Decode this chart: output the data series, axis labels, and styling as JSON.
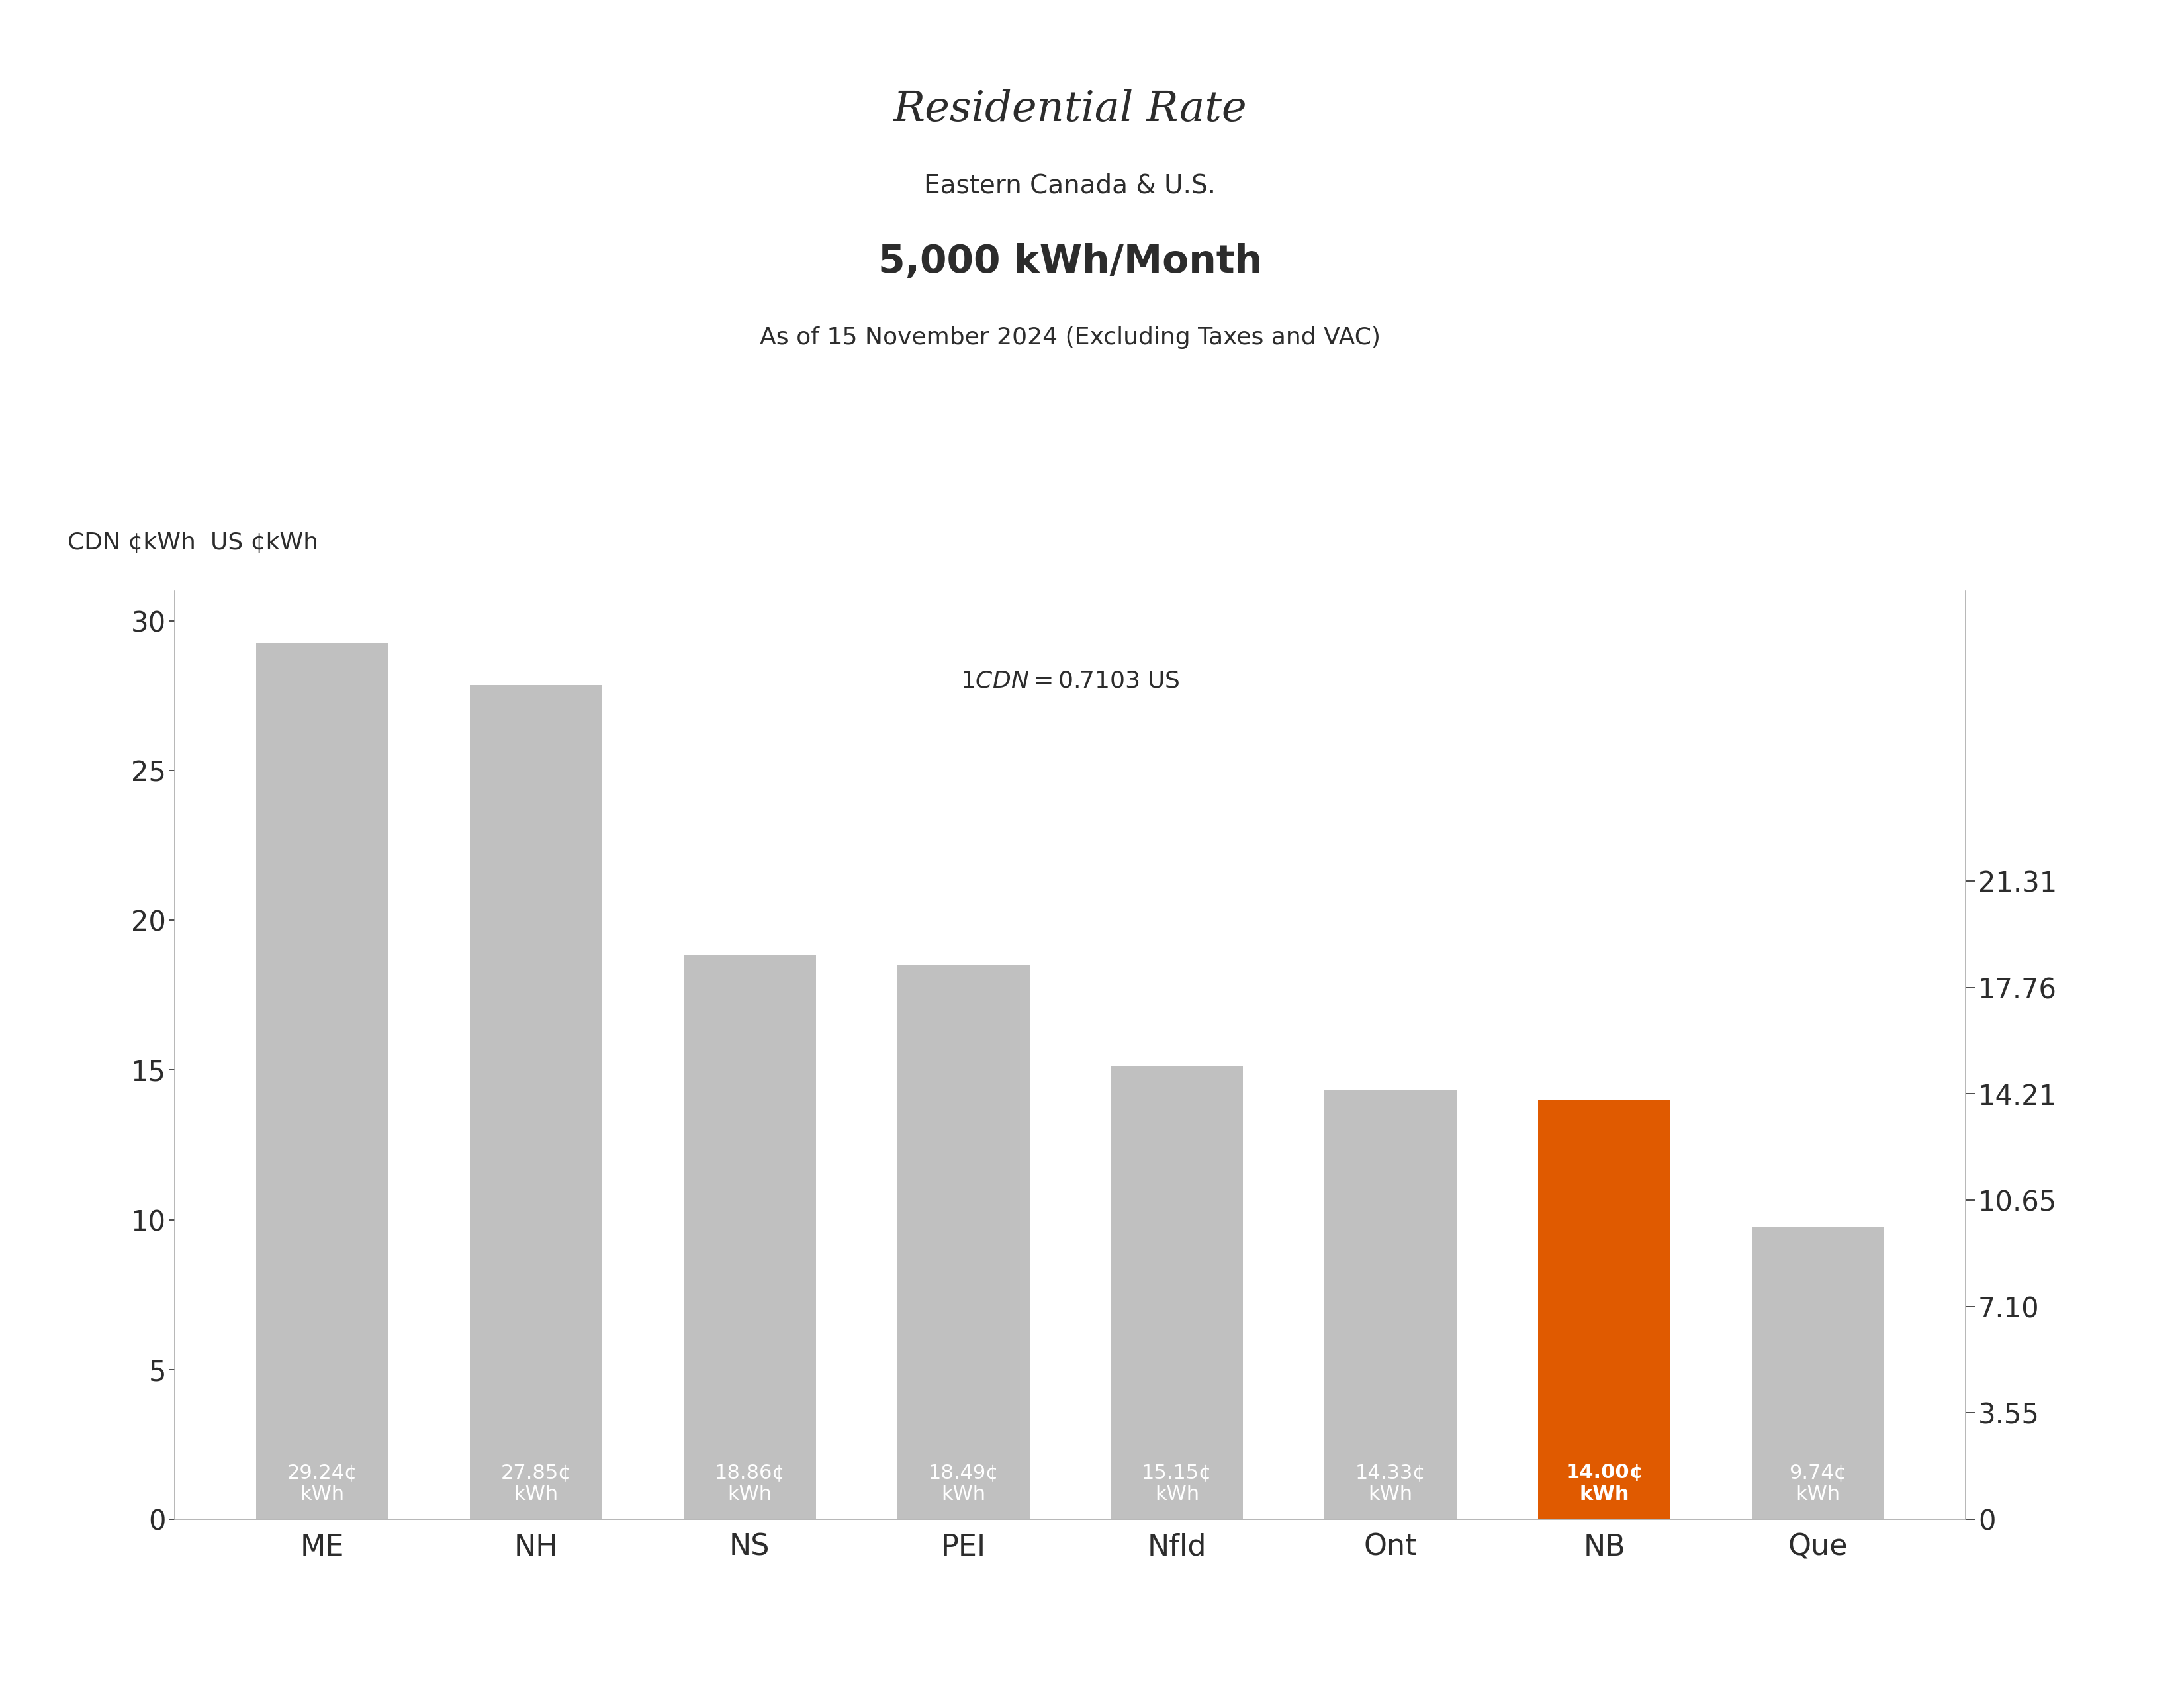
{
  "title": "Residential Rate",
  "subtitle": "Eastern Canada & U.S.",
  "subtitle2": "5,000 kWh/Month",
  "subtitle3": "As of 15 November 2024 (Excluding Taxes and VAC)",
  "exchange_rate": "$1 CDN = $0.7103 US",
  "left_ylabel": "CDN ¢kWh",
  "right_ylabel": "US ¢kWh",
  "categories": [
    "ME",
    "NH",
    "NS",
    "PEI",
    "Nfld",
    "Ont",
    "NB",
    "Que"
  ],
  "values": [
    29.24,
    27.85,
    18.86,
    18.49,
    15.15,
    14.33,
    14.0,
    9.74
  ],
  "bar_labels": [
    "29.24¢\nkWh",
    "27.85¢\nkWh",
    "18.86¢\nkWh",
    "18.49¢\nkWh",
    "15.15¢\nkWh",
    "14.33¢\nkWh",
    "14.00¢\nkWh",
    "9.74¢\nkWh"
  ],
  "bar_colors": [
    "#c0c0c0",
    "#c0c0c0",
    "#c0c0c0",
    "#c0c0c0",
    "#c0c0c0",
    "#c0c0c0",
    "#e05a00",
    "#c0c0c0"
  ],
  "highlight_index": 6,
  "ylim_left": [
    0,
    31
  ],
  "left_yticks": [
    0,
    5,
    10,
    15,
    20,
    25,
    30
  ],
  "right_yticks_vals": [
    0,
    3.55,
    7.1,
    10.65,
    14.21,
    17.76,
    21.31
  ],
  "right_ytick_labels": [
    "0",
    "3.55",
    "7.10",
    "10.65",
    "14.21",
    "17.76",
    "21.31"
  ],
  "background_color": "#ffffff",
  "text_color": "#2c2c2c",
  "bar_label_color": "#ffffff",
  "bar_label_fontsize": 22,
  "title_fontsize": 46,
  "subtitle_fontsize": 28,
  "subtitle2_fontsize": 42,
  "subtitle3_fontsize": 26,
  "exchange_fontsize": 26,
  "axis_unit_fontsize": 26,
  "tick_fontsize": 30,
  "xtick_fontsize": 32,
  "spine_color": "#aaaaaa",
  "bar_width": 0.62
}
